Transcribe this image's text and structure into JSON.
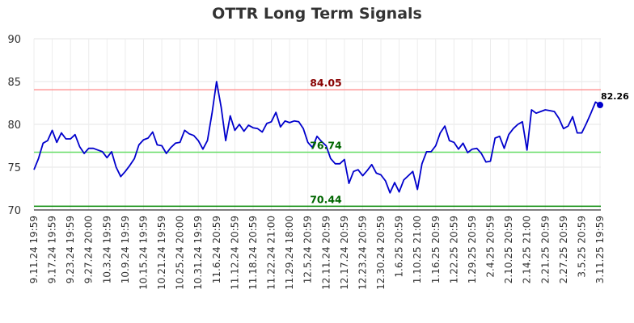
{
  "chart_data": {
    "type": "line",
    "title": "OTTR Long Term Signals",
    "xlabel": "",
    "ylabel": "",
    "ylim": [
      70,
      90
    ],
    "yticks": [
      "70",
      "75",
      "80",
      "85",
      "90"
    ],
    "xticks": [
      "9.11.24 19:59",
      "9.17.24 19:59",
      "9.23.24 19:59",
      "9.27.24 20:00",
      "10.3.24 19:59",
      "10.9.24 19:59",
      "10.15.24 19:59",
      "10.21.24 19:59",
      "10.25.24 20:00",
      "10.31.24 19:59",
      "11.6.24 20:59",
      "11.12.24 20:59",
      "11.18.24 20:59",
      "11.22.24 21:00",
      "11.29.24 18:00",
      "12.5.24 20:59",
      "12.11.24 20:59",
      "12.17.24 20:59",
      "12.23.24 20:59",
      "12.30.24 20:59",
      "1.6.25 20:59",
      "1.10.25 21:00",
      "1.16.25 20:59",
      "1.22.25 20:59",
      "1.29.25 20:59",
      "2.4.25 20:59",
      "2.10.25 20:59",
      "2.14.25 21:00",
      "2.21.25 20:59",
      "2.27.25 20:59",
      "3.5.25 20:59",
      "3.11.25 19:59"
    ],
    "grid": true,
    "colors": {
      "line": "#0000cc",
      "upper": "#ff9999",
      "middle": "#66dd66",
      "lower": "#008800",
      "upper_text": "#880000",
      "green_text": "#006600"
    },
    "reference_lines": [
      {
        "label": "84.05",
        "value": 84.05,
        "role": "upper"
      },
      {
        "label": "76.74",
        "value": 76.74,
        "role": "middle"
      },
      {
        "label": "70.44",
        "value": 70.44,
        "role": "lower"
      }
    ],
    "last": {
      "label": "82.26",
      "value": 82.26
    },
    "series": [
      {
        "values": [
          74.7,
          76.0,
          77.8,
          78.1,
          79.3,
          77.9,
          79.0,
          78.3,
          78.3,
          78.8,
          77.4,
          76.6,
          77.2,
          77.2,
          77.0,
          76.8,
          76.1,
          76.8,
          75.0,
          73.9,
          74.5,
          75.2,
          76.0,
          77.6,
          78.2,
          78.4,
          79.1,
          77.6,
          77.5,
          76.6,
          77.3,
          77.8,
          77.9,
          79.3,
          78.9,
          78.7,
          78.1,
          77.1,
          78.1,
          81.3,
          85.0,
          82.0,
          78.1,
          81.0,
          79.3,
          80.0,
          79.2,
          79.9,
          79.6,
          79.5,
          79.1,
          80.1,
          80.3,
          81.4,
          79.7,
          80.4,
          80.2,
          80.4,
          80.3,
          79.5,
          77.9,
          77.3,
          78.6,
          78.0,
          77.5,
          76.0,
          75.4,
          75.4,
          75.9,
          73.1,
          74.5,
          74.7,
          74.0,
          74.6,
          75.3,
          74.3,
          74.1,
          73.4,
          72.0,
          73.2,
          72.1,
          73.5,
          74.0,
          74.5,
          72.4,
          75.4,
          76.8,
          76.8,
          77.5,
          79.0,
          79.8,
          78.1,
          77.9,
          77.1,
          77.8,
          76.7,
          77.1,
          77.2,
          76.6,
          75.6,
          75.7,
          78.4,
          78.6,
          77.2,
          78.8,
          79.5,
          80.0,
          80.3,
          77.0,
          81.7,
          81.3,
          81.5,
          81.7,
          81.6,
          81.5,
          80.7,
          79.5,
          79.8,
          80.9,
          79.0,
          79.0,
          80.1,
          81.3,
          82.6,
          82.26
        ]
      }
    ]
  }
}
